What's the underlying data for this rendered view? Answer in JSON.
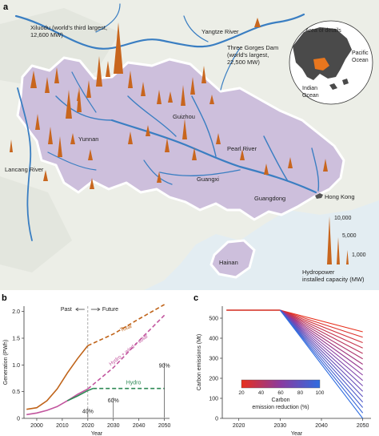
{
  "panel_a": {
    "letter": "a",
    "labels": {
      "xiluodu": [
        "Xiluodu (world's third largest,",
        "12,600 MW)"
      ],
      "yangtze": "Yangtze River",
      "three_gorges": [
        "Three Gorges Dam",
        "(world's largest,",
        "22,500 MW)"
      ],
      "area_of_details": "Area of details",
      "pacific": [
        "Pacific",
        "Ocean"
      ],
      "indian": [
        "Indian",
        "Ocean"
      ],
      "guizhou": "Guizhou",
      "yunnan": "Yunnan",
      "lancang": "Lancang River",
      "pearl": "Pearl River",
      "guangxi": "Guangxi",
      "guangdong": "Guangdong",
      "hong_kong": "Hong Kong",
      "hainan": "Hainan"
    },
    "legend": {
      "values": [
        "10,000",
        "5,000",
        "1,000"
      ],
      "caption": [
        "Hydropower",
        "installed capacity (MW)"
      ]
    },
    "colors": {
      "water": "#d9e6ee",
      "land": "#eef0ea",
      "region": "#cdbfdc",
      "river": "#3a7ec2",
      "spike": "#c8661e"
    }
  },
  "panel_b": {
    "letter": "b",
    "annotations": {
      "past": "Past",
      "future": "Future",
      "total": "Total",
      "hydro_wind_solar": "Hydro + wind + solar",
      "hydro": "Hydro",
      "pct_40": "40%",
      "pct_60": "60%",
      "pct_90": "90%"
    },
    "chart_data": {
      "type": "line",
      "title": "",
      "xlabel": "Year",
      "ylabel": "Generation (PWh)",
      "xlim": [
        1995,
        2052
      ],
      "ylim": [
        0,
        2.1
      ],
      "xticks": [
        "2000",
        "2010",
        "2020",
        "2030",
        "2040",
        "2050"
      ],
      "yticks": [
        "0",
        "0.5",
        "1.0",
        "1.5",
        "2.0"
      ],
      "series": [
        {
          "name": "Total",
          "color": "#c0641a",
          "historical": [
            [
              1996,
              0.17
            ],
            [
              2000,
              0.2
            ],
            [
              2004,
              0.33
            ],
            [
              2008,
              0.55
            ],
            [
              2012,
              0.85
            ],
            [
              2016,
              1.12
            ],
            [
              2020,
              1.36
            ]
          ],
          "projection": [
            [
              2020,
              1.36
            ],
            [
              2030,
              1.58
            ],
            [
              2040,
              1.86
            ],
            [
              2050,
              2.13
            ]
          ]
        },
        {
          "name": "Hydro + wind + solar",
          "color": "#c2559e",
          "historical": [
            [
              1996,
              0.07
            ],
            [
              2000,
              0.1
            ],
            [
              2004,
              0.15
            ],
            [
              2008,
              0.22
            ],
            [
              2012,
              0.33
            ],
            [
              2016,
              0.45
            ],
            [
              2020,
              0.55
            ]
          ],
          "projection": [
            [
              2020,
              0.55
            ],
            [
              2030,
              0.95
            ],
            [
              2040,
              1.45
            ],
            [
              2050,
              1.93
            ]
          ]
        },
        {
          "name": "Hydro",
          "color": "#2e8a55",
          "historical": [
            [
              2012,
              0.33
            ],
            [
              2016,
              0.42
            ],
            [
              2020,
              0.52
            ],
            [
              2022,
              0.56
            ]
          ],
          "projection": [
            [
              2022,
              0.56
            ],
            [
              2030,
              0.56
            ],
            [
              2040,
              0.56
            ],
            [
              2050,
              0.56
            ]
          ]
        }
      ]
    }
  },
  "panel_c": {
    "letter": "c",
    "colorbar": {
      "ticks": [
        "20",
        "40",
        "60",
        "80",
        "100"
      ],
      "label": [
        "Carbon",
        "emission reduction (%)"
      ]
    },
    "chart_data": {
      "type": "line",
      "title": "",
      "xlabel": "Year",
      "ylabel": "Carbon emissions (Mt)",
      "xlim": [
        2016,
        2052
      ],
      "ylim": [
        0,
        560
      ],
      "xticks": [
        "2020",
        "2030",
        "2040",
        "2050"
      ],
      "yticks": [
        "0",
        "100",
        "200",
        "300",
        "400",
        "500"
      ],
      "baseline": [
        [
          2017,
          540
        ],
        [
          2030,
          540
        ]
      ],
      "scenarios": {
        "start_year": 2030,
        "end_year": 2050,
        "start_value": 540,
        "reduction_pct_from": 20,
        "reduction_pct_to": 100,
        "step": 5
      }
    }
  }
}
